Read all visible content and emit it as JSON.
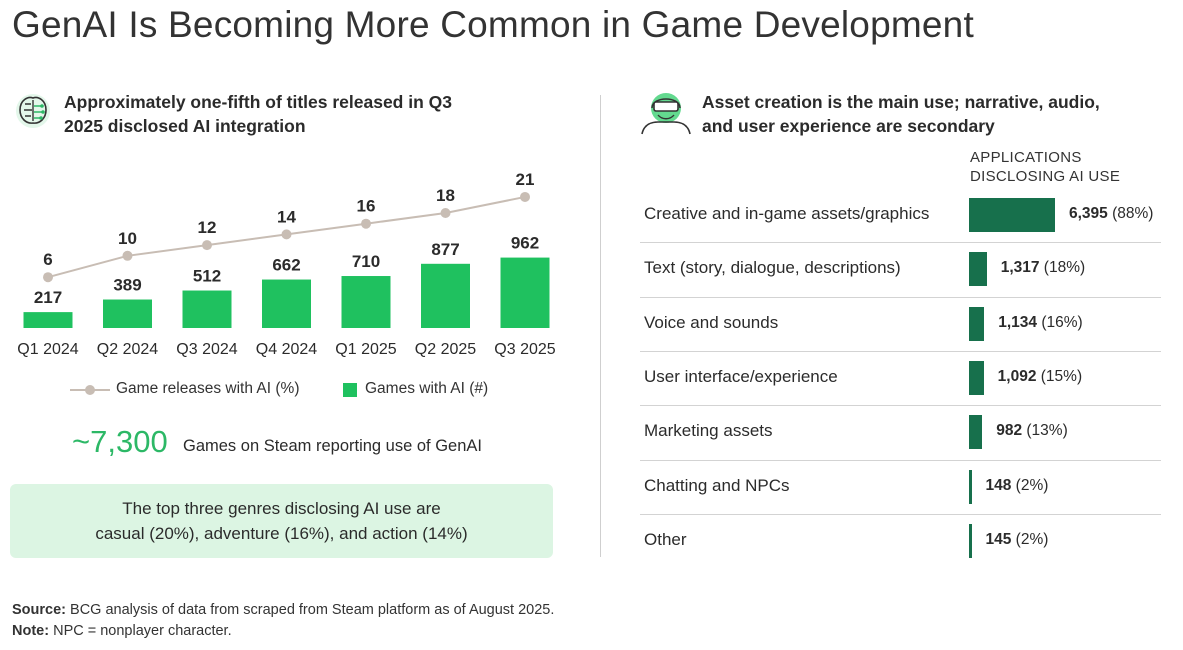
{
  "title": "GenAI Is Becoming More Common in Game Development",
  "left_panel": {
    "heading_line1": "Approximately one-fifth of titles released in Q3",
    "heading_line2": "2025 disclosed AI integration",
    "icon": "brain-circuit-icon",
    "legend_line": "Game releases with AI (%)",
    "legend_bar": "Games with AI (#)",
    "big_stat": "~7,300",
    "big_stat_label": "Games on Steam reporting use of GenAI",
    "genre_line1": "The top three genres disclosing AI use are",
    "genre_line2": "casual (20%), adventure (16%), and action (14%)"
  },
  "right_panel": {
    "heading_line1": "Asset creation is the main use; narrative, audio,",
    "heading_line2": "and user experience are secondary",
    "icon": "vr-headset-user-icon",
    "column_header_line1": "APPLICATIONS",
    "column_header_line2": "DISCLOSING AI USE"
  },
  "footer": {
    "source_label": "Source:",
    "source_text": " BCG analysis of data from scraped from Steam platform as of August 2025.",
    "note_label": "Note:",
    "note_text": " NPC = nonplayer character."
  },
  "colors": {
    "bar_green": "#1fc15f",
    "line_gray": "#c8bdb4",
    "dark_green": "#17704c",
    "accent_green": "#2cb866",
    "box_bg": "#dcf5e3"
  },
  "chart_data": [
    {
      "type": "bar",
      "categories": [
        "Q1 2024",
        "Q2 2024",
        "Q3 2024",
        "Q4 2024",
        "Q1 2025",
        "Q2 2025",
        "Q3 2025"
      ],
      "series": [
        {
          "name": "Game releases with AI (%)",
          "kind": "line",
          "values": [
            6,
            10,
            12,
            14,
            16,
            18,
            21
          ]
        },
        {
          "name": "Games with AI (#)",
          "kind": "bar",
          "values": [
            217,
            389,
            512,
            662,
            710,
            877,
            962
          ]
        }
      ]
    },
    {
      "type": "bar",
      "orientation": "horizontal",
      "categories": [
        "Creative and in-game assets/graphics",
        "Text (story, dialogue, descriptions)",
        "Voice and sounds",
        "User interface/experience",
        "Marketing assets",
        "Chatting and NPCs",
        "Other"
      ],
      "values": [
        6395,
        1317,
        1134,
        1092,
        982,
        148,
        145
      ],
      "value_labels": [
        "6,395",
        "1,317",
        "1,134",
        "1,092",
        "982",
        "148",
        "145"
      ],
      "percent_labels": [
        "(88%)",
        "(18%)",
        "(16%)",
        "(15%)",
        "(13%)",
        "(2%)",
        "(2%)"
      ]
    }
  ]
}
